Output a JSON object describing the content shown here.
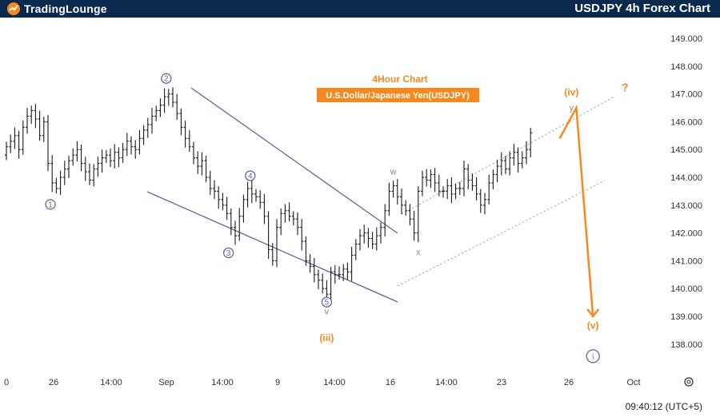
{
  "brand": {
    "name": "TradingLounge"
  },
  "header": {
    "title": "USDJPY 4h Forex Chart"
  },
  "colors": {
    "brand_bar": "#0a2a4d",
    "accent": "#f5891f",
    "wave_blue": "#5a6a9a",
    "candle": "#1a1a1a",
    "channel": "#999999"
  },
  "annotations": {
    "timeframe": "4Hour Chart",
    "instrument": "U.S.Dollar/Japanese Yen(USDJPY)",
    "question": "?"
  },
  "status": {
    "clock": "09:40:12 (UTC+5)"
  },
  "icons": {
    "settings": "gear-icon",
    "logo": "logo-mark-icon"
  },
  "chart_data": {
    "type": "candlestick",
    "x_tick_labels": [
      "0",
      "26",
      "14:00",
      "Sep",
      "14:00",
      "9",
      "14:00",
      "16",
      "14:00",
      "23",
      "26",
      "Oct"
    ],
    "y_ticks": [
      138.0,
      139.0,
      140.0,
      141.0,
      142.0,
      143.0,
      144.0,
      145.0,
      146.0,
      147.0,
      148.0,
      149.0
    ],
    "y_tick_labels": [
      "138.000",
      "139.000",
      "140.000",
      "141.000",
      "142.000",
      "143.000",
      "144.000",
      "145.000",
      "146.000",
      "147.000",
      "148.000",
      "149.000"
    ],
    "ylim": [
      137.5,
      149.5
    ],
    "closes": [
      145.1,
      145.3,
      145.5,
      145.0,
      145.8,
      146.2,
      146.4,
      146.1,
      145.5,
      146.0,
      144.5,
      143.8,
      143.6,
      144.0,
      144.3,
      144.6,
      144.8,
      145.0,
      144.5,
      144.2,
      143.9,
      144.3,
      144.5,
      144.7,
      144.8,
      144.6,
      144.9,
      144.7,
      145.0,
      145.3,
      145.1,
      145.0,
      145.4,
      145.7,
      145.9,
      146.2,
      146.4,
      146.6,
      146.9,
      147.0,
      146.7,
      146.3,
      145.8,
      145.4,
      145.1,
      144.7,
      144.4,
      144.6,
      144.0,
      143.6,
      143.5,
      143.2,
      143.0,
      142.7,
      142.2,
      141.9,
      142.6,
      143.2,
      143.6,
      143.4,
      143.3,
      143.1,
      142.6,
      141.4,
      141.0,
      142.2,
      142.7,
      142.8,
      142.6,
      142.5,
      142.2,
      141.7,
      141.0,
      140.8,
      140.5,
      140.3,
      140.0,
      139.8,
      140.6,
      140.5,
      140.5,
      140.7,
      140.6,
      141.2,
      141.6,
      141.9,
      142.0,
      141.8,
      141.6,
      141.9,
      142.2,
      142.8,
      143.5,
      143.7,
      143.3,
      143.0,
      142.8,
      142.5,
      142.0,
      143.5,
      144.0,
      143.9,
      144.1,
      143.8,
      143.5,
      143.5,
      143.7,
      143.4,
      143.6,
      143.6,
      144.3,
      143.9,
      143.7,
      143.4,
      143.0,
      143.2,
      143.8,
      144.1,
      144.4,
      144.6,
      144.3,
      144.7,
      144.9,
      144.5,
      144.7,
      145.0,
      145.6
    ],
    "wave_labels": [
      {
        "text": "1",
        "style": "circle-blue",
        "price": 143.2,
        "index": 10
      },
      {
        "text": "2",
        "style": "circle-blue",
        "price": 147.5,
        "index": 39
      },
      {
        "text": "3",
        "style": "circle-blue",
        "price": 141.4,
        "index": 53
      },
      {
        "text": "4",
        "style": "circle-blue",
        "price": 144.0,
        "index": 59
      },
      {
        "text": "5",
        "style": "circle-blue",
        "price": 139.6,
        "index": 77
      },
      {
        "text": "v",
        "style": "plain-gray",
        "price": 139.5,
        "index": 77
      },
      {
        "text": "(iii)",
        "style": "orange",
        "price": 139.0,
        "index": 77
      },
      {
        "text": "w",
        "style": "plain-gray",
        "price": 144.1,
        "index": 93
      },
      {
        "text": "x",
        "style": "plain-gray",
        "price": 141.2,
        "index": 99
      },
      {
        "text": "(iv)",
        "style": "orange",
        "price": 147.0,
        "index": 137
      },
      {
        "text": "y",
        "style": "plain-gray",
        "price": 146.8,
        "index": 137
      },
      {
        "text": "(v)",
        "style": "orange",
        "price": 138.9,
        "index": 141
      },
      {
        "text": "i",
        "style": "circle-blue-large",
        "price": 138.2,
        "index": 141
      }
    ],
    "projection": {
      "from": {
        "index": 133,
        "price": 145.4
      },
      "peak": {
        "index": 137,
        "price": 146.5
      },
      "target": {
        "index": 141,
        "price": 139.0
      }
    },
    "grid": false
  }
}
